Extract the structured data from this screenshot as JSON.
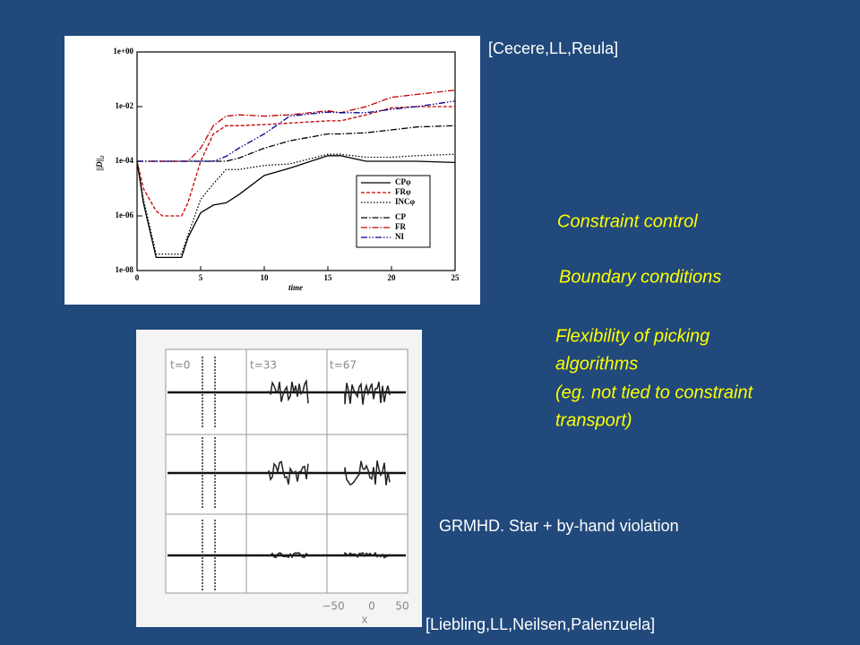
{
  "slide": {
    "top_citation": "[Cecere,LL,Reula]",
    "bullets": [
      "Constraint control",
      "Boundary conditions"
    ],
    "flex_lines": [
      "Flexibility of picking",
      "algorithms",
      "(eg. not tied to constraint",
      "transport)"
    ],
    "caption": "GRMHD. Star + by-hand violation",
    "bottom_citation": "[Liebling,LL,Neilsen,Palenzuela]"
  },
  "chart_data": {
    "type": "line",
    "log_y": true,
    "x_label": "time",
    "y_label": "||D||₂",
    "x": [
      0,
      0.5,
      1.5,
      2,
      3.5,
      4,
      5,
      6,
      7,
      8,
      10,
      12,
      15,
      16,
      18,
      20,
      22,
      25
    ],
    "xlim": [
      0,
      25
    ],
    "xticks": [
      0,
      5,
      10,
      15,
      20,
      25
    ],
    "ylim": [
      1e-08,
      1
    ],
    "yticks": [
      {
        "value": 1e-08,
        "label": "1e-08"
      },
      {
        "value": 1e-06,
        "label": "1e-06"
      },
      {
        "value": 0.0001,
        "label": "1e-04"
      },
      {
        "value": 0.01,
        "label": "1e-02"
      },
      {
        "value": 1,
        "label": "1e+00"
      }
    ],
    "series": [
      {
        "name": "CPφ",
        "color": "#000000",
        "dash": "solid",
        "values": [
          0.0001,
          3e-06,
          3e-08,
          3e-08,
          3e-08,
          1.6e-07,
          1.3e-06,
          2.5e-06,
          3e-06,
          6e-06,
          3e-05,
          5.6e-05,
          0.00016,
          0.00016,
          0.0001,
          0.0001,
          0.0001,
          9e-05
        ]
      },
      {
        "name": "FRφ",
        "color": "#c00000",
        "dash": "dashed",
        "values": [
          0.0001,
          1e-05,
          1.5e-06,
          1e-06,
          1e-06,
          3e-06,
          0.0001,
          0.001,
          0.002,
          0.002,
          0.0022,
          0.0025,
          0.003,
          0.003,
          0.005,
          0.009,
          0.01,
          0.01
        ]
      },
      {
        "name": "INCφ",
        "color": "#000000",
        "dash": "dotted",
        "values": [
          0.0001,
          4e-06,
          4e-08,
          4e-08,
          4e-08,
          2e-07,
          4e-06,
          1.5e-05,
          5e-05,
          5e-05,
          7e-05,
          8e-05,
          0.00018,
          0.00018,
          0.00014,
          0.00014,
          0.00016,
          0.00018
        ]
      },
      {
        "name": "CP",
        "color": "#000000",
        "dash": "dashdot",
        "values": [
          0.0001,
          0.0001,
          0.0001,
          0.0001,
          0.0001,
          0.0001,
          0.0001,
          0.0001,
          0.0001,
          0.00013,
          0.0003,
          0.00056,
          0.001,
          0.001,
          0.0011,
          0.0014,
          0.0018,
          0.002
        ]
      },
      {
        "name": "FR",
        "color": "#c00000",
        "dash": "dashdot",
        "values": [
          0.0001,
          0.0001,
          0.0001,
          0.0001,
          0.0001,
          0.0001,
          0.0003,
          0.002,
          0.0045,
          0.005,
          0.0045,
          0.005,
          0.007,
          0.006,
          0.01,
          0.022,
          0.028,
          0.04
        ]
      },
      {
        "name": "NI",
        "color": "#00008b",
        "dash": "dashdotdot",
        "values": [
          0.0001,
          0.0001,
          0.0001,
          0.0001,
          0.0001,
          0.0001,
          0.0001,
          0.0001,
          0.00015,
          0.0003,
          0.001,
          0.0045,
          0.0063,
          0.006,
          0.006,
          0.008,
          0.01,
          0.016
        ]
      }
    ]
  },
  "panel_figure": {
    "panels": [
      "t=0",
      "t=33",
      "t=67"
    ],
    "x_label": "x",
    "xticks": [
      "−50",
      "0",
      "50"
    ]
  }
}
